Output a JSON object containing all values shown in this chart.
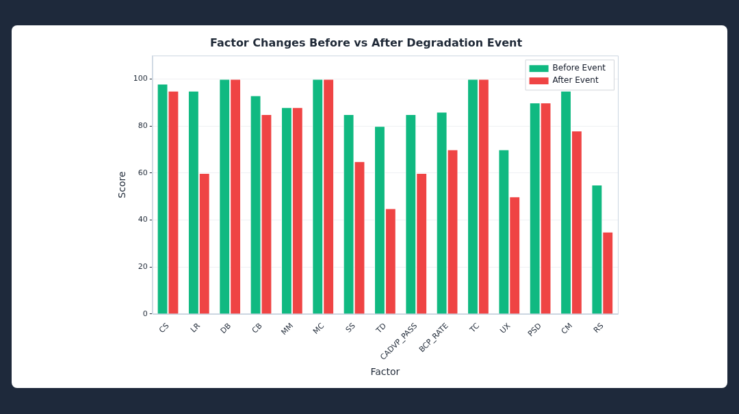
{
  "chart_data": {
    "type": "bar",
    "title": "Factor Changes Before vs After Degradation Event",
    "xlabel": "Factor",
    "ylabel": "Score",
    "categories": [
      "CS",
      "LR",
      "DB",
      "CB",
      "MM",
      "MC",
      "SS",
      "TD",
      "CADVP_PASS",
      "BCP_RATE",
      "TC",
      "UX",
      "PSD",
      "CM",
      "RS"
    ],
    "series": [
      {
        "name": "Before Event",
        "color": "#10b981",
        "values": [
          98,
          95,
          100,
          93,
          88,
          100,
          85,
          80,
          85,
          86,
          100,
          70,
          90,
          95,
          55
        ]
      },
      {
        "name": "After Event",
        "color": "#ef4444",
        "values": [
          95,
          60,
          100,
          85,
          88,
          100,
          65,
          45,
          60,
          70,
          100,
          50,
          90,
          78,
          35
        ]
      }
    ],
    "ylim": [
      0,
      110
    ],
    "yticks": [
      0,
      20,
      40,
      60,
      80,
      100
    ],
    "grid": "y",
    "legend": "top right"
  }
}
